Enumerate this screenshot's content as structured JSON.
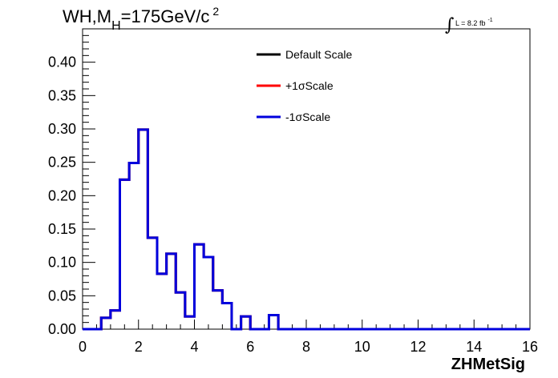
{
  "chart_data": {
    "type": "line",
    "title_main": "WH,M",
    "title_sub": "H",
    "title_rest": "=175GeV/c",
    "title_sup": "2",
    "lumi_main": "L = 8.2 fb",
    "lumi_sup": "-1",
    "xlabel": "ZHMetSig",
    "xlim": [
      0,
      16
    ],
    "ylim": [
      0,
      0.45
    ],
    "x_ticks": [
      "0",
      "2",
      "4",
      "6",
      "8",
      "10",
      "12",
      "14",
      "16"
    ],
    "y_ticks": [
      "0.00",
      "0.05",
      "0.10",
      "0.15",
      "0.20",
      "0.25",
      "0.30",
      "0.35",
      "0.40"
    ],
    "bin_width": 0.3333,
    "bin_edges_start": 0,
    "series": [
      {
        "name": "Default Scale",
        "color": "#000000",
        "values": [
          0,
          0,
          0.017,
          0.028,
          0.224,
          0.249,
          0.299,
          0.137,
          0.083,
          0.113,
          0.055,
          0.019,
          0.127,
          0.108,
          0.058,
          0.039,
          0,
          0.019,
          0,
          0,
          0.021,
          0,
          0,
          0,
          0,
          0,
          0,
          0,
          0,
          0,
          0,
          0,
          0,
          0,
          0,
          0,
          0,
          0,
          0,
          0,
          0,
          0,
          0,
          0,
          0,
          0,
          0,
          0
        ]
      },
      {
        "name": "+1σScale",
        "color": "#ff0000",
        "values": [
          0,
          0,
          0.017,
          0.028,
          0.224,
          0.249,
          0.299,
          0.137,
          0.083,
          0.113,
          0.055,
          0.019,
          0.127,
          0.108,
          0.058,
          0.039,
          0,
          0.019,
          0,
          0,
          0.021,
          0,
          0,
          0,
          0,
          0,
          0,
          0,
          0,
          0,
          0,
          0,
          0,
          0,
          0,
          0,
          0,
          0,
          0,
          0,
          0,
          0,
          0,
          0,
          0,
          0,
          0,
          0
        ]
      },
      {
        "name": "-1σScale",
        "color": "#0000dd",
        "values": [
          0,
          0,
          0.017,
          0.028,
          0.224,
          0.249,
          0.299,
          0.137,
          0.083,
          0.113,
          0.055,
          0.019,
          0.127,
          0.108,
          0.058,
          0.039,
          0,
          0.019,
          0,
          0,
          0.021,
          0,
          0,
          0,
          0,
          0,
          0,
          0,
          0,
          0,
          0,
          0,
          0,
          0,
          0,
          0,
          0,
          0,
          0,
          0,
          0,
          0,
          0,
          0,
          0,
          0,
          0,
          0
        ]
      }
    ],
    "legend_position": "top-center"
  }
}
